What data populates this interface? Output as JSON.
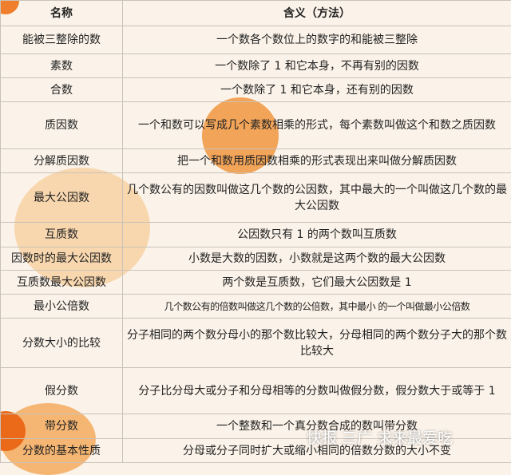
{
  "header": {
    "col1": "名称",
    "col2": "含义（方法）"
  },
  "rows": [
    {
      "term": "能被三整除的数",
      "definition": "一个数各个数位上的数字的和能被三整除"
    },
    {
      "term": "素数",
      "definition": "一个数除了 1 和它本身，不再有别的因数"
    },
    {
      "term": "合数",
      "definition": "一个数除了 1 和它本身，还有别的因数"
    },
    {
      "term": "质因数",
      "definition": "一个和数可以写成几个素数相乘的形式，每个素数叫做这个和数之质因数"
    },
    {
      "term": "分解质因数",
      "definition": "把一个和数用质因数相乘的形式表现出来叫做分解质因数"
    },
    {
      "term": "最大公因数",
      "definition": "几个数公有的因数叫做这几个数的公因数，其中最大的一个叫做这几个数的最大公因数"
    },
    {
      "term": "互质数",
      "definition": "公因数只有 1 的两个数叫互质数"
    },
    {
      "term": "因数时的最大公因数",
      "definition": "小数是大数的因数，小数就是这两个数的最大公因数"
    },
    {
      "term": "互质数最大公因数",
      "definition": "两个数是互质数，它们最大公因数是 1"
    },
    {
      "term": "最小公倍数",
      "definition": "几个数公有的倍数叫做这几个数的公倍数，其中最小 的一个叫做最小公倍数"
    },
    {
      "term": "分数大小的比较",
      "definition": "分子相同的两个数分母小的那个数比较大，分母相同的两个数分子大的那个数比较大"
    },
    {
      "term": "假分数",
      "definition": "分子比分母大或分子和分母相等的分数叫做假分数，假分数大于或等于 1"
    },
    {
      "term": "带分数",
      "definition": "一个整数和一个真分数合成的数叫带分数"
    },
    {
      "term": "分数的基本性质",
      "definition": "分母或分子同时扩大或缩小相同的倍数分数的大小不变"
    }
  ],
  "watermark": "快报 三广 求来最爱吃"
}
